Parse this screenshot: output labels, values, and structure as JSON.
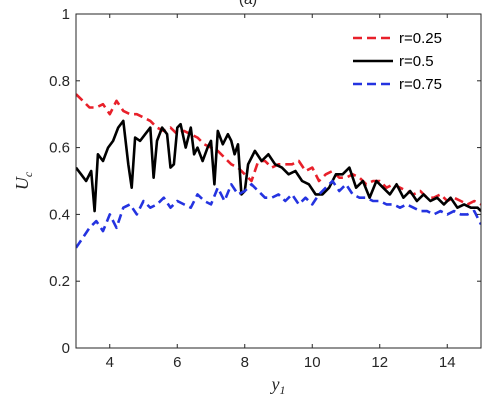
{
  "chart_data": {
    "type": "line",
    "title": "",
    "panel_label": "(a)",
    "xlabel": "y",
    "xlabel_sub": "1",
    "ylabel": "U",
    "ylabel_sub": "c",
    "xlim": [
      3,
      15
    ],
    "ylim": [
      0,
      1
    ],
    "xticks": [
      "4",
      "6",
      "8",
      "10",
      "12",
      "14"
    ],
    "yticks": [
      "0",
      "0.2",
      "0.4",
      "0.6",
      "0.8",
      "1"
    ],
    "grid": false,
    "legend_position": "top-right",
    "series": [
      {
        "name": "r=0.25",
        "color": "#e8202a",
        "dash": "dashed",
        "x": [
          3.0,
          3.2,
          3.4,
          3.6,
          3.8,
          4.0,
          4.2,
          4.4,
          4.6,
          4.8,
          5.0,
          5.2,
          5.4,
          5.6,
          5.8,
          6.0,
          6.2,
          6.4,
          6.6,
          6.8,
          7.0,
          7.2,
          7.4,
          7.6,
          7.8,
          8.0,
          8.2,
          8.4,
          8.6,
          8.8,
          9.0,
          9.2,
          9.4,
          9.6,
          9.8,
          10.0,
          10.2,
          10.4,
          10.6,
          10.8,
          11.0,
          11.2,
          11.4,
          11.6,
          11.8,
          12.0,
          12.2,
          12.4,
          12.6,
          12.8,
          13.0,
          13.2,
          13.4,
          13.6,
          13.8,
          14.0,
          14.2,
          14.4,
          14.6,
          14.8,
          15.0
        ],
        "y": [
          0.76,
          0.74,
          0.72,
          0.72,
          0.73,
          0.7,
          0.74,
          0.71,
          0.7,
          0.7,
          0.69,
          0.68,
          0.66,
          0.65,
          0.66,
          0.64,
          0.65,
          0.64,
          0.63,
          0.61,
          0.6,
          0.59,
          0.57,
          0.55,
          0.54,
          0.52,
          0.5,
          0.56,
          0.56,
          0.54,
          0.55,
          0.55,
          0.55,
          0.56,
          0.53,
          0.54,
          0.5,
          0.52,
          0.53,
          0.51,
          0.51,
          0.52,
          0.51,
          0.49,
          0.5,
          0.5,
          0.48,
          0.49,
          0.48,
          0.47,
          0.46,
          0.47,
          0.45,
          0.45,
          0.46,
          0.44,
          0.45,
          0.44,
          0.43,
          0.44,
          0.43
        ]
      },
      {
        "name": "r=0.5",
        "color": "#000000",
        "dash": "solid",
        "x": [
          3.0,
          3.15,
          3.3,
          3.45,
          3.55,
          3.65,
          3.8,
          3.95,
          4.1,
          4.25,
          4.4,
          4.55,
          4.65,
          4.75,
          4.9,
          5.05,
          5.2,
          5.3,
          5.4,
          5.55,
          5.7,
          5.8,
          5.9,
          6.0,
          6.1,
          6.25,
          6.4,
          6.5,
          6.6,
          6.75,
          6.9,
          7.0,
          7.1,
          7.2,
          7.35,
          7.5,
          7.6,
          7.7,
          7.8,
          7.9,
          8.0,
          8.1,
          8.3,
          8.5,
          8.7,
          8.9,
          9.1,
          9.3,
          9.5,
          9.7,
          9.9,
          10.1,
          10.3,
          10.5,
          10.7,
          10.9,
          11.1,
          11.3,
          11.5,
          11.7,
          11.9,
          12.1,
          12.3,
          12.5,
          12.7,
          12.9,
          13.1,
          13.3,
          13.5,
          13.7,
          13.9,
          14.1,
          14.3,
          14.5,
          14.7,
          14.9,
          15.0
        ],
        "y": [
          0.54,
          0.52,
          0.5,
          0.53,
          0.41,
          0.58,
          0.56,
          0.6,
          0.62,
          0.66,
          0.68,
          0.55,
          0.48,
          0.63,
          0.62,
          0.64,
          0.66,
          0.51,
          0.62,
          0.66,
          0.64,
          0.54,
          0.55,
          0.66,
          0.67,
          0.6,
          0.66,
          0.58,
          0.6,
          0.56,
          0.6,
          0.62,
          0.49,
          0.65,
          0.61,
          0.64,
          0.62,
          0.58,
          0.61,
          0.46,
          0.47,
          0.55,
          0.59,
          0.56,
          0.58,
          0.55,
          0.54,
          0.52,
          0.53,
          0.5,
          0.49,
          0.46,
          0.46,
          0.48,
          0.52,
          0.52,
          0.54,
          0.48,
          0.5,
          0.45,
          0.5,
          0.48,
          0.46,
          0.49,
          0.45,
          0.47,
          0.44,
          0.46,
          0.44,
          0.45,
          0.43,
          0.45,
          0.42,
          0.43,
          0.42,
          0.42,
          0.41
        ]
      },
      {
        "name": "r=0.75",
        "color": "#2433e0",
        "dash": "dashed",
        "x": [
          3.0,
          3.2,
          3.4,
          3.6,
          3.8,
          4.0,
          4.2,
          4.4,
          4.6,
          4.8,
          5.0,
          5.2,
          5.4,
          5.6,
          5.8,
          6.0,
          6.2,
          6.4,
          6.6,
          6.8,
          7.0,
          7.2,
          7.4,
          7.6,
          7.8,
          8.0,
          8.2,
          8.4,
          8.6,
          8.8,
          9.0,
          9.2,
          9.4,
          9.6,
          9.8,
          10.0,
          10.2,
          10.4,
          10.6,
          10.8,
          11.0,
          11.2,
          11.4,
          11.6,
          11.8,
          12.0,
          12.2,
          12.4,
          12.6,
          12.8,
          13.0,
          13.2,
          13.4,
          13.6,
          13.8,
          14.0,
          14.2,
          14.4,
          14.6,
          14.8,
          15.0
        ],
        "y": [
          0.3,
          0.33,
          0.36,
          0.38,
          0.35,
          0.4,
          0.36,
          0.42,
          0.43,
          0.4,
          0.44,
          0.42,
          0.43,
          0.45,
          0.42,
          0.44,
          0.43,
          0.42,
          0.46,
          0.44,
          0.43,
          0.48,
          0.44,
          0.49,
          0.46,
          0.47,
          0.49,
          0.47,
          0.45,
          0.45,
          0.46,
          0.44,
          0.46,
          0.43,
          0.45,
          0.43,
          0.46,
          0.48,
          0.5,
          0.47,
          0.49,
          0.46,
          0.45,
          0.45,
          0.44,
          0.44,
          0.43,
          0.43,
          0.42,
          0.43,
          0.42,
          0.41,
          0.41,
          0.4,
          0.41,
          0.4,
          0.41,
          0.4,
          0.4,
          0.41,
          0.37
        ]
      }
    ]
  }
}
